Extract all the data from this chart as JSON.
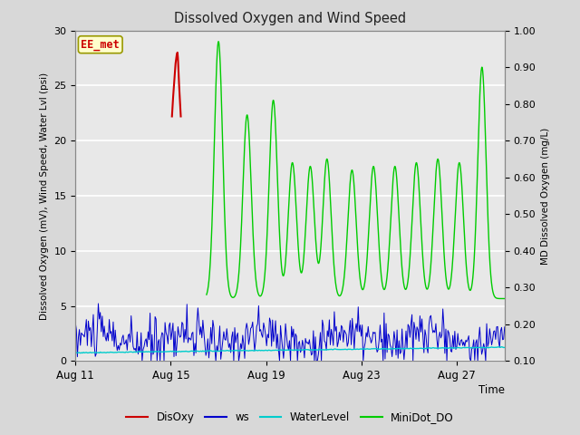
{
  "title": "Dissolved Oxygen and Wind Speed",
  "ylabel_left": "Dissolved Oxygen (mV), Wind Speed, Water Lvl (psi)",
  "ylabel_right": "MD Dissolved Oxygen (mg/L)",
  "xlabel": "Time",
  "ylim_left": [
    0,
    30
  ],
  "ylim_right": [
    0.1,
    1.0
  ],
  "bg_color": "#d8d8d8",
  "plot_bg_color": "#e8e8e8",
  "annotation_text": "EE_met",
  "annotation_bg": "#ffffcc",
  "annotation_border": "#999900",
  "annotation_text_color": "#cc0000",
  "colors": {
    "DisOxy": "#cc0000",
    "ws": "#0000cc",
    "WaterLevel": "#00cccc",
    "MiniDot_DO": "#00cc00"
  },
  "x_tick_labels": [
    "Aug 11",
    "Aug 15",
    "Aug 19",
    "Aug 23",
    "Aug 27"
  ],
  "x_tick_positions": [
    0,
    4,
    8,
    12,
    16
  ],
  "left_ticks": [
    0,
    5,
    10,
    15,
    20,
    25,
    30
  ],
  "right_ticks": [
    0.1,
    0.2,
    0.3,
    0.4,
    0.5,
    0.6,
    0.7,
    0.8,
    0.9,
    1.0
  ],
  "total_days": 18,
  "disoxy_x": [
    4.05,
    4.1,
    4.15,
    4.2,
    4.25,
    4.28,
    4.3,
    4.35,
    4.4,
    4.42
  ],
  "disoxy_y": [
    22.2,
    24.0,
    25.5,
    27.0,
    27.8,
    28.0,
    27.5,
    25.0,
    23.0,
    22.2
  ],
  "minidot_peaks": [
    6.0,
    7.2,
    8.3,
    9.1,
    9.85,
    10.55,
    11.6,
    12.5,
    13.4,
    14.3,
    15.2,
    16.1,
    17.05,
    17.5
  ],
  "minidot_peak_h": [
    0.97,
    0.77,
    0.81,
    0.64,
    0.63,
    0.65,
    0.62,
    0.63,
    0.63,
    0.64,
    0.65,
    0.64,
    0.9,
    0.27
  ],
  "minidot_start": 5.5,
  "minidot_trough": 0.27,
  "ws_seed": 10,
  "water_seed": 77
}
